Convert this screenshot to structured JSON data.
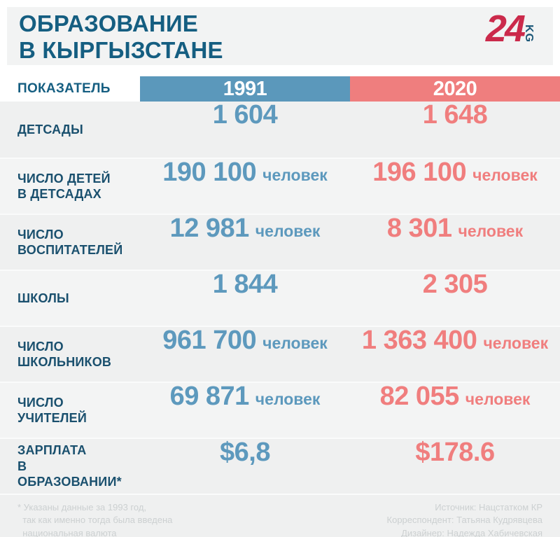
{
  "page": {
    "title": "ОБРАЗОВАНИЕ\nВ КЫРГЫЗСТАНЕ",
    "logo": {
      "number": "24",
      "region": "KG"
    }
  },
  "colors": {
    "navy": "#155e81",
    "label_navy": "#1a506e",
    "blue": "#5b98bb",
    "red": "#ef7e7e",
    "blue_text": "#5d99bd",
    "red_text": "#f07e7e",
    "panel_bg": "#f2f3f3",
    "logo_red": "#cb2a4b",
    "logo_navy": "#1d5878",
    "footnote_gray": "#ccd0d1"
  },
  "table": {
    "indicator_header": "ПОКАЗАТЕЛЬ",
    "col_1991": "1991",
    "col_2020": "2020",
    "rows": [
      {
        "label": "ДЕТСАДЫ",
        "v1991": "1 604",
        "u1991": "",
        "v2020": "1 648",
        "u2020": ""
      },
      {
        "label": "ЧИСЛО ДЕТЕЙ\nВ ДЕТСАДАХ",
        "v1991": "190 100",
        "u1991": "человек",
        "v2020": "196 100",
        "u2020": "человек"
      },
      {
        "label": "ЧИСЛО\nВОСПИТАТЕЛЕЙ",
        "v1991": "12 981",
        "u1991": "человек",
        "v2020": "8 301",
        "u2020": "человек"
      },
      {
        "label": "ШКОЛЫ",
        "v1991": "1 844",
        "u1991": "",
        "v2020": "2 305",
        "u2020": ""
      },
      {
        "label": "ЧИСЛО\nШКОЛЬНИКОВ",
        "v1991": "961 700",
        "u1991": "человек",
        "v2020": "1 363 400",
        "u2020": "человек"
      },
      {
        "label": "ЧИСЛО\nУЧИТЕЛЕЙ",
        "v1991": "69 871",
        "u1991": "человек",
        "v2020": "82 055",
        "u2020": "человек"
      },
      {
        "label": "ЗАРПЛАТА\nВ ОБРАЗОВАНИИ*",
        "v1991": "$6,8",
        "u1991": "",
        "v2020": "$178.6",
        "u2020": ""
      }
    ]
  },
  "footer": {
    "note": "* Указаны данные за 1993 год,\n  так как именно тогда была введена\n  национальная валюта",
    "credits": "Источник: Нацстатком КР\nКорреспондент: Татьяна Кудрявцева\nДизайнер: Надежда Хабичевская"
  },
  "chart_data": {
    "type": "table",
    "title": "ОБРАЗОВАНИЕ В КЫРГЫЗСТАНЕ",
    "categories": [
      "ДЕТСАДЫ",
      "ЧИСЛО ДЕТЕЙ В ДЕТСАДАХ",
      "ЧИСЛО ВОСПИТАТЕЛЕЙ",
      "ШКОЛЫ",
      "ЧИСЛО ШКОЛЬНИКОВ",
      "ЧИСЛО УЧИТЕЛЕЙ",
      "ЗАРПЛАТА В ОБРАЗОВАНИИ*"
    ],
    "series": [
      {
        "name": "1991",
        "values": [
          1604,
          190100,
          12981,
          1844,
          961700,
          69871,
          6.8
        ]
      },
      {
        "name": "2020",
        "values": [
          1648,
          196100,
          8301,
          2305,
          1363400,
          82055,
          178.6
        ]
      }
    ],
    "units": [
      "",
      "человек",
      "человек",
      "",
      "человек",
      "человек",
      "USD ($)"
    ],
    "footnote": "Зарплата 1991 показана по данным за 1993 год (введение национальной валюты)"
  }
}
